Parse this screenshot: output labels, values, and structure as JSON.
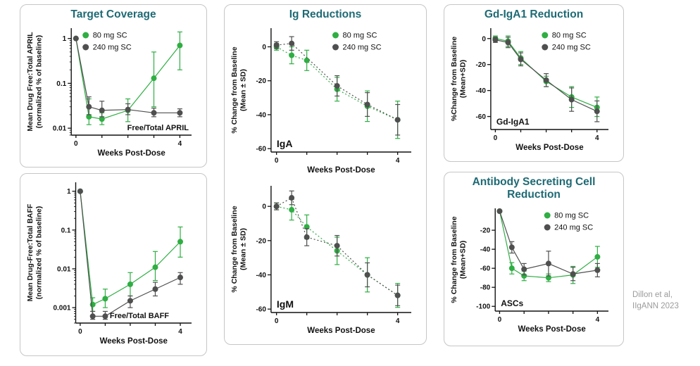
{
  "colors": {
    "green": "#2fae43",
    "gray": "#4f4f4f",
    "title_teal": "#1e6a74",
    "panel_border": "#c6c6c6",
    "credit_gray": "#9b9b9b",
    "axis_black": "#111111"
  },
  "panels": {
    "target_coverage": {
      "title": "Target Coverage"
    },
    "ig_reductions": {
      "title": "Ig Reductions"
    },
    "gd_iga1": {
      "title": "Gd-IgA1 Reduction"
    },
    "asc": {
      "title": "Antibody Secreting Cell Reduction"
    }
  },
  "credit": {
    "line1": "Dillon et al,",
    "line2": "IIgANN 2023"
  },
  "chart_data": [
    {
      "id": "april",
      "type": "scatter",
      "yscale": "log",
      "inner_label": "Free/Total APRIL",
      "inner_label_pos": "bottom-right",
      "inner_label_size": 11,
      "xlabel": "Weeks Post-Dose",
      "ylabel_lines": [
        "Mean Drug Free:Total APRIL",
        "(normalized % of baseline)"
      ],
      "xlim": [
        -0.18,
        4.45
      ],
      "ylim": [
        0.007,
        1.7
      ],
      "xticks": [
        0,
        1,
        2,
        3,
        4
      ],
      "xtick_labels": [
        "0",
        "",
        "",
        "",
        "4"
      ],
      "yticks": [
        0.01,
        0.1,
        1
      ],
      "ytick_labels": [
        "0.01",
        "0.1",
        "1"
      ],
      "grid": false,
      "legend_pos": "top-left",
      "line_style": "solid",
      "series": [
        {
          "name": "80 mg SC",
          "color": "green",
          "x": [
            0,
            0.5,
            1,
            2,
            3,
            4
          ],
          "y": [
            1,
            0.018,
            0.016,
            0.025,
            0.13,
            0.7
          ],
          "lo": [
            1,
            0.012,
            0.012,
            0.014,
            0.03,
            0.2
          ],
          "hi": [
            1,
            0.045,
            0.022,
            0.045,
            0.5,
            1.4
          ]
        },
        {
          "name": "240 mg SC",
          "color": "gray",
          "x": [
            0,
            0.5,
            1,
            2,
            3,
            4
          ],
          "y": [
            1,
            0.03,
            0.025,
            0.026,
            0.022,
            0.022
          ],
          "lo": [
            1,
            0.02,
            0.018,
            0.02,
            0.018,
            0.018
          ],
          "hi": [
            1,
            0.05,
            0.04,
            0.035,
            0.028,
            0.027
          ]
        }
      ]
    },
    {
      "id": "baff",
      "type": "scatter",
      "yscale": "log",
      "inner_label": "Free/Total BAFF",
      "inner_label_pos": "bottom-center",
      "inner_label_size": 11,
      "xlabel": "Weeks Post-Dose",
      "ylabel_lines": [
        "Mean Drug-Free:Total BAFF",
        "(normalized % of baseline)"
      ],
      "xlim": [
        -0.18,
        4.45
      ],
      "ylim": [
        0.0004,
        1.7
      ],
      "xticks": [
        0,
        1,
        2,
        3,
        4
      ],
      "xtick_labels": [
        "0",
        "",
        "",
        "",
        "4"
      ],
      "yticks": [
        0.001,
        0.01,
        0.1,
        1
      ],
      "ytick_labels": [
        "0.001",
        "0.01",
        "0.1",
        "1"
      ],
      "grid": false,
      "legend_pos": "none",
      "line_style": "solid",
      "series": [
        {
          "name": "80 mg SC",
          "color": "green",
          "x": [
            0,
            0.5,
            1,
            2,
            3,
            4
          ],
          "y": [
            1,
            0.0012,
            0.0017,
            0.004,
            0.011,
            0.05
          ],
          "lo": [
            1,
            0.0008,
            0.001,
            0.002,
            0.005,
            0.02
          ],
          "hi": [
            1,
            0.0018,
            0.003,
            0.008,
            0.028,
            0.12
          ]
        },
        {
          "name": "240 mg SC",
          "color": "gray",
          "x": [
            0,
            0.5,
            1,
            2,
            3,
            4
          ],
          "y": [
            1,
            0.0006,
            0.0006,
            0.0015,
            0.003,
            0.006
          ],
          "lo": [
            1,
            0.0005,
            0.0005,
            0.001,
            0.002,
            0.004
          ],
          "hi": [
            1,
            0.0008,
            0.0008,
            0.002,
            0.0045,
            0.008
          ]
        }
      ]
    },
    {
      "id": "iga",
      "type": "scatter",
      "yscale": "linear",
      "inner_label": "IgA",
      "inner_label_pos": "bottom-left",
      "inner_label_size": 14,
      "xlabel": "Weeks Post-Dose",
      "ylabel_lines": [
        "% Change from Baseline",
        "(Mean ± SD)"
      ],
      "xlim": [
        -0.18,
        4.45
      ],
      "ylim": [
        -62,
        11
      ],
      "xticks": [
        0,
        1,
        2,
        3,
        4
      ],
      "xtick_labels": [
        "0",
        "",
        "",
        "",
        "4"
      ],
      "yticks": [
        0,
        -20,
        -40,
        -60
      ],
      "ytick_labels": [
        "0",
        "-20",
        "-40",
        "-60"
      ],
      "grid": false,
      "legend_pos": "top-right",
      "line_style": "dotted",
      "series": [
        {
          "name": "80 mg SC",
          "color": "green",
          "x": [
            0,
            0.5,
            1,
            2,
            3,
            4
          ],
          "y": [
            0,
            -5,
            -8,
            -25,
            -35,
            -43
          ],
          "lo": [
            -2,
            -10,
            -14,
            -32,
            -44,
            -54
          ],
          "hi": [
            2,
            0,
            -2,
            -18,
            -26,
            -32
          ]
        },
        {
          "name": "240 mg SC",
          "color": "gray",
          "x": [
            0,
            0.5,
            2,
            3,
            4
          ],
          "y": [
            1,
            2,
            -23,
            -34,
            -43
          ],
          "lo": [
            -1,
            -2,
            -29,
            -41,
            -52
          ],
          "hi": [
            3,
            6,
            -17,
            -27,
            -34
          ]
        }
      ]
    },
    {
      "id": "igm",
      "type": "scatter",
      "yscale": "linear",
      "inner_label": "IgM",
      "inner_label_pos": "bottom-left",
      "inner_label_size": 14,
      "xlabel": "Weeks Post-Dose",
      "ylabel_lines": [
        "% Change from Baseline",
        "(Mean ± SD)"
      ],
      "xlim": [
        -0.18,
        4.45
      ],
      "ylim": [
        -62,
        12
      ],
      "xticks": [
        0,
        1,
        2,
        3,
        4
      ],
      "xtick_labels": [
        "0",
        "",
        "",
        "",
        "4"
      ],
      "yticks": [
        0,
        -20,
        -40,
        -60
      ],
      "ytick_labels": [
        "0",
        "-20",
        "-40",
        "-60"
      ],
      "grid": false,
      "legend_pos": "none",
      "line_style": "dotted",
      "series": [
        {
          "name": "80 mg SC",
          "color": "green",
          "x": [
            0,
            0.5,
            1,
            2,
            3,
            4
          ],
          "y": [
            0,
            -2,
            -12,
            -26,
            -40,
            -52
          ],
          "lo": [
            -2,
            -8,
            -19,
            -34,
            -50,
            -59
          ],
          "hi": [
            2,
            4,
            -5,
            -18,
            -30,
            -45
          ]
        },
        {
          "name": "240 mg SC",
          "color": "gray",
          "x": [
            0,
            0.5,
            1,
            2,
            3,
            4
          ],
          "y": [
            0,
            5,
            -18,
            -23,
            -40,
            -52
          ],
          "lo": [
            -2,
            1,
            -23,
            -29,
            -47,
            -58
          ],
          "hi": [
            2,
            9,
            -13,
            -17,
            -33,
            -46
          ]
        }
      ]
    },
    {
      "id": "gd",
      "type": "scatter",
      "yscale": "linear",
      "inner_label": "Gd-IgA1",
      "inner_label_pos": "bottom-left",
      "inner_label_size": 12,
      "xlabel": "Weeks Post-Dose",
      "ylabel_lines": [
        "%Change from Baseline",
        "(Mean+SD)"
      ],
      "xlim": [
        -0.18,
        4.45
      ],
      "ylim": [
        -70,
        8
      ],
      "xticks": [
        0,
        1,
        2,
        3,
        4
      ],
      "xtick_labels": [
        "0",
        "",
        "",
        "",
        "4"
      ],
      "yticks": [
        0,
        -20,
        -40,
        -60
      ],
      "ytick_labels": [
        "0",
        "-20",
        "-40",
        "-60"
      ],
      "grid": false,
      "legend_pos": "top-right",
      "line_style": "solid",
      "series": [
        {
          "name": "80 mg SC",
          "color": "green",
          "x": [
            0,
            0.5,
            1,
            2,
            3,
            4
          ],
          "y": [
            0,
            -2,
            -15,
            -33,
            -45,
            -53
          ],
          "lo": [
            -2,
            -6,
            -20,
            -37,
            -53,
            -60
          ],
          "hi": [
            2,
            2,
            -10,
            -29,
            -37,
            -45
          ]
        },
        {
          "name": "240 mg SC",
          "color": "gray",
          "x": [
            0,
            0.5,
            1,
            2,
            3,
            4
          ],
          "y": [
            -1,
            -3,
            -16,
            -32,
            -47,
            -56
          ],
          "lo": [
            -3,
            -7,
            -21,
            -37,
            -56,
            -64
          ],
          "hi": [
            1,
            1,
            -11,
            -27,
            -38,
            -48
          ]
        }
      ]
    },
    {
      "id": "asc",
      "type": "scatter",
      "yscale": "linear",
      "inner_label": "ASCs",
      "inner_label_pos": "bottom-left",
      "inner_label_size": 12,
      "xlabel": "Weeks Post-Dose",
      "ylabel_lines": [
        "% Change from Baseline",
        "(Mean+SD)"
      ],
      "xlim": [
        -0.18,
        4.45
      ],
      "ylim": [
        -105,
        3
      ],
      "xticks": [
        0,
        1,
        2,
        3,
        4
      ],
      "xtick_labels": [
        "0",
        "",
        "",
        "",
        "4"
      ],
      "yticks": [
        -20,
        -40,
        -60,
        -80,
        -100
      ],
      "ytick_labels": [
        "-20",
        "-40",
        "-60",
        "-80",
        "-100"
      ],
      "grid": false,
      "legend_pos": "top-right",
      "line_style": "solid",
      "series": [
        {
          "name": "80 mg SC",
          "color": "green",
          "x": [
            0,
            0.5,
            1,
            2,
            3,
            4
          ],
          "y": [
            0,
            -60,
            -68,
            -70,
            -67,
            -48
          ],
          "lo": [
            0,
            -66,
            -73,
            -74,
            -76,
            -59
          ],
          "hi": [
            0,
            -54,
            -63,
            -66,
            -58,
            -37
          ]
        },
        {
          "name": "240 mg SC",
          "color": "gray",
          "x": [
            0,
            0.5,
            1,
            2,
            3,
            4
          ],
          "y": [
            0,
            -38,
            -61,
            -55,
            -66,
            -62
          ],
          "lo": [
            0,
            -44,
            -67,
            -68,
            -73,
            -69
          ],
          "hi": [
            0,
            -32,
            -55,
            -42,
            -59,
            -55
          ]
        }
      ]
    }
  ]
}
